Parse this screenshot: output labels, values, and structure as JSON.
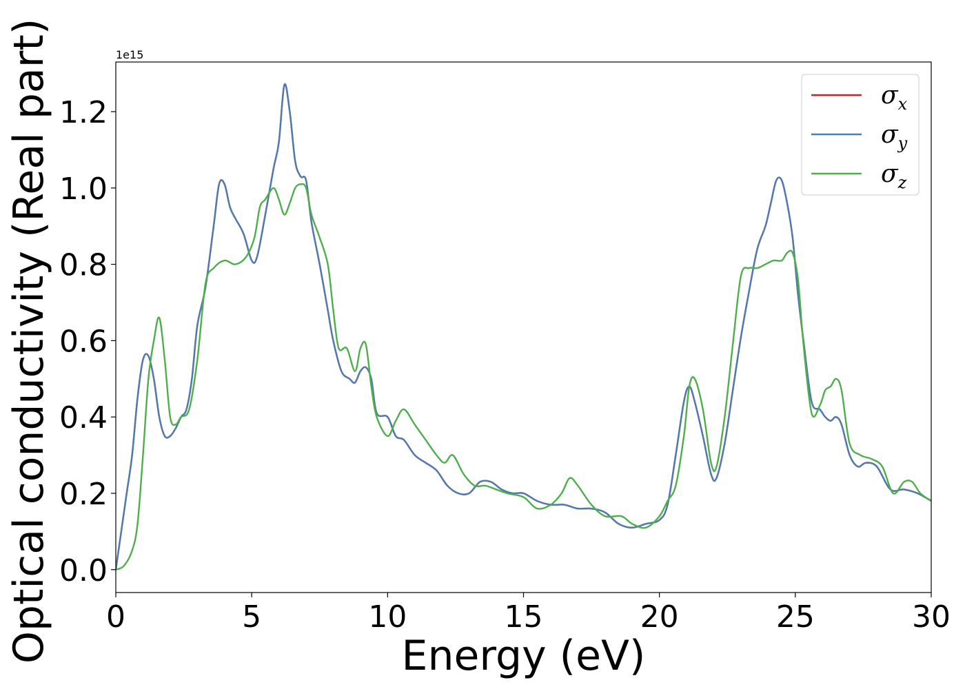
{
  "chart_data": {
    "type": "line",
    "title": "",
    "xlabel": "Energy (eV)",
    "ylabel": "Optical conductivity (Real part)",
    "y_offset_label": "1e15",
    "y_scale": 1000000000000000.0,
    "xlim": [
      0,
      30
    ],
    "ylim": [
      -0.06,
      1.33
    ],
    "xticks": [
      0,
      5,
      10,
      15,
      20,
      25,
      30
    ],
    "xtick_labels": [
      "0",
      "5",
      "10",
      "15",
      "20",
      "25",
      "30"
    ],
    "yticks": [
      0.0,
      0.2,
      0.4,
      0.6,
      0.8,
      1.0,
      1.2
    ],
    "ytick_labels": [
      "0.0",
      "0.2",
      "0.4",
      "0.6",
      "0.8",
      "1.0",
      "1.2"
    ],
    "grid": false,
    "legend_position": "top-right",
    "series": [
      {
        "name": "σx",
        "legend_symbol": "σ",
        "legend_sub": "x",
        "color": "#e41a1c",
        "x": [
          0,
          0.2,
          0.4,
          0.6,
          0.8,
          1.0,
          1.2,
          1.4,
          1.6,
          1.8,
          2.0,
          2.2,
          2.4,
          2.6,
          2.8,
          3.0,
          3.3,
          3.6,
          3.8,
          4.0,
          4.2,
          4.4,
          4.7,
          5.0,
          5.2,
          5.5,
          5.8,
          6.0,
          6.2,
          6.4,
          6.6,
          6.8,
          7.0,
          7.2,
          7.5,
          7.8,
          8.0,
          8.3,
          8.6,
          8.8,
          9.0,
          9.2,
          9.4,
          9.6,
          10.0,
          10.3,
          10.6,
          11.0,
          11.4,
          11.8,
          12.2,
          12.6,
          13.0,
          13.4,
          13.8,
          14.2,
          14.6,
          15.0,
          15.5,
          16.0,
          16.5,
          17.0,
          17.5,
          18.0,
          18.5,
          19.0,
          19.5,
          20.0,
          20.3,
          20.6,
          20.9,
          21.1,
          21.3,
          21.6,
          21.9,
          22.1,
          22.4,
          22.7,
          23.0,
          23.3,
          23.6,
          23.9,
          24.1,
          24.3,
          24.5,
          24.7,
          24.9,
          25.1,
          25.3,
          25.6,
          25.9,
          26.1,
          26.3,
          26.5,
          26.7,
          27.0,
          27.3,
          27.6,
          28.0,
          28.5,
          29.0,
          29.5,
          30.0
        ],
        "values": [
          0.0,
          0.1,
          0.2,
          0.3,
          0.45,
          0.55,
          0.56,
          0.5,
          0.4,
          0.35,
          0.35,
          0.37,
          0.4,
          0.42,
          0.5,
          0.64,
          0.74,
          0.9,
          1.01,
          1.01,
          0.95,
          0.92,
          0.88,
          0.81,
          0.82,
          0.93,
          1.05,
          1.12,
          1.27,
          1.2,
          1.07,
          1.03,
          1.02,
          0.91,
          0.8,
          0.68,
          0.6,
          0.52,
          0.5,
          0.49,
          0.52,
          0.53,
          0.5,
          0.41,
          0.4,
          0.35,
          0.34,
          0.3,
          0.28,
          0.26,
          0.22,
          0.2,
          0.2,
          0.23,
          0.23,
          0.21,
          0.2,
          0.2,
          0.18,
          0.17,
          0.17,
          0.16,
          0.16,
          0.15,
          0.12,
          0.11,
          0.12,
          0.13,
          0.17,
          0.3,
          0.44,
          0.48,
          0.44,
          0.35,
          0.25,
          0.24,
          0.33,
          0.47,
          0.61,
          0.73,
          0.84,
          0.9,
          0.96,
          1.02,
          1.02,
          0.96,
          0.87,
          0.72,
          0.6,
          0.44,
          0.42,
          0.4,
          0.39,
          0.4,
          0.38,
          0.3,
          0.27,
          0.28,
          0.27,
          0.21,
          0.21,
          0.2,
          0.18
        ]
      },
      {
        "name": "σy",
        "legend_symbol": "σ",
        "legend_sub": "y",
        "color": "#4a7db3",
        "x": [
          0,
          0.2,
          0.4,
          0.6,
          0.8,
          1.0,
          1.2,
          1.4,
          1.6,
          1.8,
          2.0,
          2.2,
          2.4,
          2.6,
          2.8,
          3.0,
          3.3,
          3.6,
          3.8,
          4.0,
          4.2,
          4.4,
          4.7,
          5.0,
          5.2,
          5.5,
          5.8,
          6.0,
          6.2,
          6.4,
          6.6,
          6.8,
          7.0,
          7.2,
          7.5,
          7.8,
          8.0,
          8.3,
          8.6,
          8.8,
          9.0,
          9.2,
          9.4,
          9.6,
          10.0,
          10.3,
          10.6,
          11.0,
          11.4,
          11.8,
          12.2,
          12.6,
          13.0,
          13.4,
          13.8,
          14.2,
          14.6,
          15.0,
          15.5,
          16.0,
          16.5,
          17.0,
          17.5,
          18.0,
          18.5,
          19.0,
          19.5,
          20.0,
          20.3,
          20.6,
          20.9,
          21.1,
          21.3,
          21.6,
          21.9,
          22.1,
          22.4,
          22.7,
          23.0,
          23.3,
          23.6,
          23.9,
          24.1,
          24.3,
          24.5,
          24.7,
          24.9,
          25.1,
          25.3,
          25.6,
          25.9,
          26.1,
          26.3,
          26.5,
          26.7,
          27.0,
          27.3,
          27.6,
          28.0,
          28.5,
          29.0,
          29.5,
          30.0
        ],
        "values": [
          0.0,
          0.1,
          0.2,
          0.3,
          0.45,
          0.55,
          0.56,
          0.5,
          0.4,
          0.35,
          0.35,
          0.37,
          0.4,
          0.42,
          0.5,
          0.64,
          0.74,
          0.9,
          1.01,
          1.01,
          0.95,
          0.92,
          0.88,
          0.81,
          0.82,
          0.93,
          1.05,
          1.12,
          1.27,
          1.2,
          1.07,
          1.03,
          1.02,
          0.91,
          0.8,
          0.68,
          0.6,
          0.52,
          0.5,
          0.49,
          0.52,
          0.53,
          0.5,
          0.41,
          0.4,
          0.35,
          0.34,
          0.3,
          0.28,
          0.26,
          0.22,
          0.2,
          0.2,
          0.23,
          0.23,
          0.21,
          0.2,
          0.2,
          0.18,
          0.17,
          0.17,
          0.16,
          0.16,
          0.15,
          0.12,
          0.11,
          0.12,
          0.13,
          0.17,
          0.3,
          0.44,
          0.48,
          0.44,
          0.35,
          0.25,
          0.24,
          0.33,
          0.47,
          0.61,
          0.73,
          0.84,
          0.9,
          0.96,
          1.02,
          1.02,
          0.96,
          0.87,
          0.72,
          0.6,
          0.44,
          0.42,
          0.4,
          0.39,
          0.4,
          0.38,
          0.3,
          0.27,
          0.28,
          0.27,
          0.21,
          0.21,
          0.2,
          0.18
        ]
      },
      {
        "name": "σz",
        "legend_symbol": "σ",
        "legend_sub": "z",
        "color": "#4daf4a",
        "x": [
          0,
          0.3,
          0.6,
          0.8,
          1.0,
          1.2,
          1.4,
          1.6,
          1.8,
          2.0,
          2.2,
          2.4,
          2.7,
          3.0,
          3.3,
          3.6,
          4.0,
          4.4,
          4.8,
          5.1,
          5.3,
          5.5,
          5.8,
          6.0,
          6.2,
          6.4,
          6.6,
          6.8,
          7.0,
          7.2,
          7.5,
          7.8,
          8.0,
          8.2,
          8.5,
          8.8,
          9.0,
          9.2,
          9.4,
          9.6,
          10.0,
          10.3,
          10.6,
          11.0,
          11.4,
          11.8,
          12.1,
          12.4,
          12.8,
          13.2,
          13.6,
          14.0,
          14.4,
          15.0,
          15.5,
          16.0,
          16.4,
          16.7,
          17.0,
          17.5,
          18.0,
          18.6,
          19.0,
          19.5,
          20.0,
          20.3,
          20.6,
          20.9,
          21.1,
          21.3,
          21.6,
          21.9,
          22.1,
          22.4,
          22.7,
          23.0,
          23.3,
          23.6,
          23.9,
          24.2,
          24.5,
          24.7,
          24.9,
          25.1,
          25.3,
          25.6,
          25.9,
          26.1,
          26.3,
          26.5,
          26.7,
          27.0,
          27.4,
          27.8,
          28.2,
          28.6,
          29.0,
          29.3,
          29.6,
          30.0
        ],
        "values": [
          0.0,
          0.01,
          0.05,
          0.12,
          0.3,
          0.5,
          0.6,
          0.66,
          0.55,
          0.4,
          0.38,
          0.4,
          0.42,
          0.55,
          0.75,
          0.79,
          0.81,
          0.8,
          0.82,
          0.87,
          0.95,
          0.97,
          1.0,
          0.97,
          0.93,
          0.96,
          1.0,
          1.01,
          1.0,
          0.93,
          0.87,
          0.8,
          0.68,
          0.58,
          0.58,
          0.52,
          0.58,
          0.59,
          0.48,
          0.4,
          0.35,
          0.39,
          0.42,
          0.38,
          0.34,
          0.3,
          0.28,
          0.3,
          0.25,
          0.22,
          0.22,
          0.21,
          0.2,
          0.19,
          0.16,
          0.17,
          0.2,
          0.24,
          0.22,
          0.17,
          0.14,
          0.14,
          0.12,
          0.11,
          0.14,
          0.18,
          0.22,
          0.35,
          0.48,
          0.5,
          0.42,
          0.28,
          0.27,
          0.4,
          0.59,
          0.77,
          0.79,
          0.79,
          0.8,
          0.81,
          0.81,
          0.83,
          0.83,
          0.76,
          0.59,
          0.41,
          0.43,
          0.47,
          0.48,
          0.5,
          0.47,
          0.33,
          0.3,
          0.29,
          0.27,
          0.2,
          0.23,
          0.23,
          0.2,
          0.18
        ]
      }
    ]
  }
}
